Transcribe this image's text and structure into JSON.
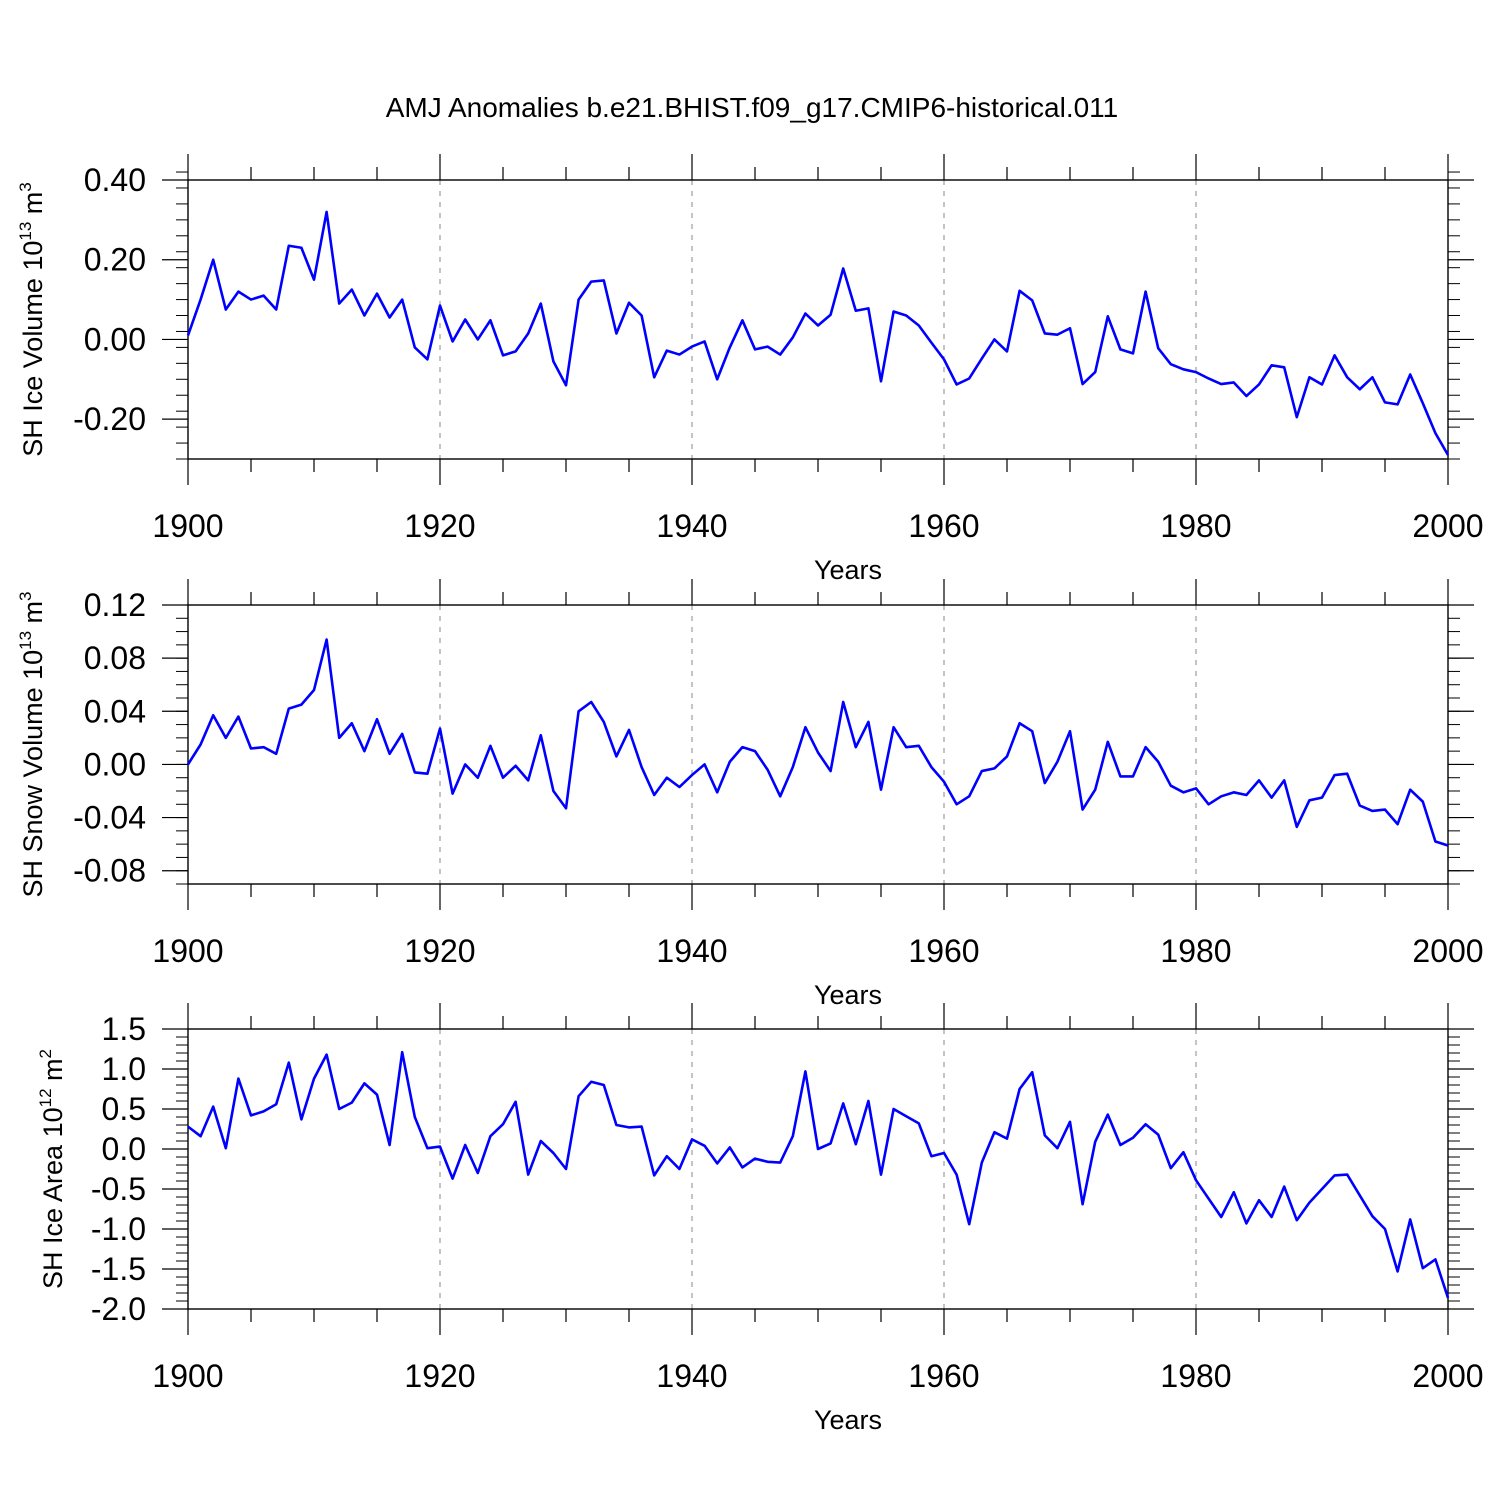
{
  "figure": {
    "title": "AMJ Anomalies b.e21.BHIST.f09_g17.CMIP6-historical.011"
  },
  "style": {
    "line_color": "#0000ff",
    "grid_color": "#888888",
    "axis_color": "#000000"
  },
  "chart_data": [
    {
      "type": "line",
      "xlabel": "Years",
      "ylabel_text": "SH Ice Volume 10",
      "ylabel_exp": "13",
      "ylabel_unit": " m",
      "ylabel_unit_exp": "3",
      "xlim": [
        1900,
        2000
      ],
      "ylim": [
        -0.3,
        0.4
      ],
      "xticks": [
        1900,
        1920,
        1940,
        1960,
        1980,
        2000
      ],
      "xtick_labels": [
        "1900",
        "1920",
        "1940",
        "1960",
        "1980",
        "2000"
      ],
      "yticks": [
        -0.2,
        0.0,
        0.2,
        0.4
      ],
      "ytick_labels": [
        "-0.20",
        "0.00",
        "0.20",
        "0.40"
      ],
      "yminor_step": 0.04,
      "grid_x": true,
      "series": [
        {
          "x_start": 1900,
          "x_step": 1,
          "values": [
            0.01,
            0.1,
            0.2,
            0.075,
            0.12,
            0.1,
            0.11,
            0.075,
            0.235,
            0.23,
            0.15,
            0.32,
            0.09,
            0.125,
            0.06,
            0.115,
            0.055,
            0.1,
            -0.02,
            -0.05,
            0.085,
            -0.005,
            0.05,
            0.0,
            0.048,
            -0.04,
            -0.03,
            0.015,
            0.09,
            -0.055,
            -0.115,
            0.1,
            0.145,
            0.148,
            0.015,
            0.092,
            0.06,
            -0.095,
            -0.028,
            -0.038,
            -0.018,
            -0.005,
            -0.1,
            -0.02,
            0.048,
            -0.025,
            -0.018,
            -0.038,
            0.005,
            0.065,
            0.035,
            0.062,
            0.178,
            0.072,
            0.078,
            -0.105,
            0.07,
            0.06,
            0.035,
            -0.008,
            -0.05,
            -0.113,
            -0.098,
            -0.048,
            0.0,
            -0.03,
            0.122,
            0.098,
            0.015,
            0.012,
            0.028,
            -0.112,
            -0.082,
            0.058,
            -0.025,
            -0.035,
            0.12,
            -0.022,
            -0.062,
            -0.075,
            -0.082,
            -0.098,
            -0.112,
            -0.108,
            -0.142,
            -0.113,
            -0.065,
            -0.07,
            -0.195,
            -0.095,
            -0.113,
            -0.04,
            -0.095,
            -0.125,
            -0.095,
            -0.158,
            -0.163,
            -0.088,
            -0.16,
            -0.235,
            -0.29
          ]
        }
      ]
    },
    {
      "type": "line",
      "xlabel": "Years",
      "ylabel_text": "SH Snow Volume 10",
      "ylabel_exp": "13",
      "ylabel_unit": " m",
      "ylabel_unit_exp": "3",
      "xlim": [
        1900,
        2000
      ],
      "ylim": [
        -0.09,
        0.12
      ],
      "xticks": [
        1900,
        1920,
        1940,
        1960,
        1980,
        2000
      ],
      "xtick_labels": [
        "1900",
        "1920",
        "1940",
        "1960",
        "1980",
        "2000"
      ],
      "yticks": [
        -0.08,
        -0.04,
        0.0,
        0.04,
        0.08,
        0.12
      ],
      "ytick_labels": [
        "-0.08",
        "-0.04",
        "0.00",
        "0.04",
        "0.08",
        "0.12"
      ],
      "yminor_step": 0.01,
      "grid_x": true,
      "series": [
        {
          "x_start": 1900,
          "x_step": 1,
          "values": [
            0.0,
            0.015,
            0.037,
            0.02,
            0.036,
            0.012,
            0.013,
            0.008,
            0.042,
            0.045,
            0.056,
            0.094,
            0.02,
            0.031,
            0.01,
            0.034,
            0.008,
            0.023,
            -0.006,
            -0.007,
            0.027,
            -0.022,
            0.0,
            -0.01,
            0.014,
            -0.01,
            -0.001,
            -0.012,
            0.022,
            -0.02,
            -0.033,
            0.04,
            0.047,
            0.032,
            0.006,
            0.026,
            -0.002,
            -0.023,
            -0.01,
            -0.017,
            -0.008,
            0.0,
            -0.021,
            0.002,
            0.013,
            0.01,
            -0.004,
            -0.024,
            -0.002,
            0.028,
            0.009,
            -0.005,
            0.047,
            0.013,
            0.032,
            -0.019,
            0.028,
            0.013,
            0.014,
            -0.002,
            -0.013,
            -0.03,
            -0.024,
            -0.005,
            -0.003,
            0.006,
            0.031,
            0.025,
            -0.014,
            0.002,
            0.025,
            -0.034,
            -0.019,
            0.017,
            -0.009,
            -0.009,
            0.013,
            0.002,
            -0.016,
            -0.021,
            -0.018,
            -0.03,
            -0.024,
            -0.021,
            -0.023,
            -0.012,
            -0.025,
            -0.012,
            -0.047,
            -0.027,
            -0.025,
            -0.008,
            -0.007,
            -0.031,
            -0.035,
            -0.034,
            -0.045,
            -0.019,
            -0.028,
            -0.058,
            -0.061
          ]
        }
      ]
    },
    {
      "type": "line",
      "xlabel": "Years",
      "ylabel_text": "SH Ice Area 10",
      "ylabel_exp": "12",
      "ylabel_unit": " m",
      "ylabel_unit_exp": "2",
      "xlim": [
        1900,
        2000
      ],
      "ylim": [
        -2.0,
        1.5
      ],
      "xticks": [
        1900,
        1920,
        1940,
        1960,
        1980,
        2000
      ],
      "xtick_labels": [
        "1900",
        "1920",
        "1940",
        "1960",
        "1980",
        "2000"
      ],
      "yticks": [
        -2.0,
        -1.5,
        -1.0,
        -0.5,
        0.0,
        0.5,
        1.0,
        1.5
      ],
      "ytick_labels": [
        "-2.0",
        "-1.5",
        "-1.0",
        "-0.5",
        "0.0",
        "0.5",
        "1.0",
        "1.5"
      ],
      "yminor_step": 0.1,
      "grid_x": true,
      "series": [
        {
          "x_start": 1900,
          "x_step": 1,
          "values": [
            0.28,
            0.16,
            0.53,
            0.01,
            0.88,
            0.42,
            0.47,
            0.56,
            1.08,
            0.37,
            0.88,
            1.18,
            0.5,
            0.58,
            0.82,
            0.68,
            0.05,
            1.21,
            0.4,
            0.01,
            0.03,
            -0.37,
            0.05,
            -0.3,
            0.16,
            0.31,
            0.59,
            -0.32,
            0.1,
            -0.05,
            -0.25,
            0.66,
            0.84,
            0.8,
            0.3,
            0.27,
            0.28,
            -0.33,
            -0.09,
            -0.25,
            0.12,
            0.04,
            -0.18,
            0.02,
            -0.23,
            -0.12,
            -0.16,
            -0.17,
            0.16,
            0.97,
            0.0,
            0.07,
            0.57,
            0.06,
            0.6,
            -0.32,
            0.5,
            0.41,
            0.32,
            -0.09,
            -0.05,
            -0.32,
            -0.94,
            -0.17,
            0.21,
            0.13,
            0.75,
            0.96,
            0.17,
            0.01,
            0.34,
            -0.69,
            0.09,
            0.43,
            0.05,
            0.14,
            0.31,
            0.18,
            -0.24,
            -0.04,
            -0.39,
            -0.62,
            -0.85,
            -0.54,
            -0.93,
            -0.64,
            -0.85,
            -0.47,
            -0.89,
            -0.67,
            -0.5,
            -0.33,
            -0.32,
            -0.58,
            -0.84,
            -1.0,
            -1.53,
            -0.88,
            -1.49,
            -1.38,
            -1.86
          ]
        }
      ]
    }
  ]
}
